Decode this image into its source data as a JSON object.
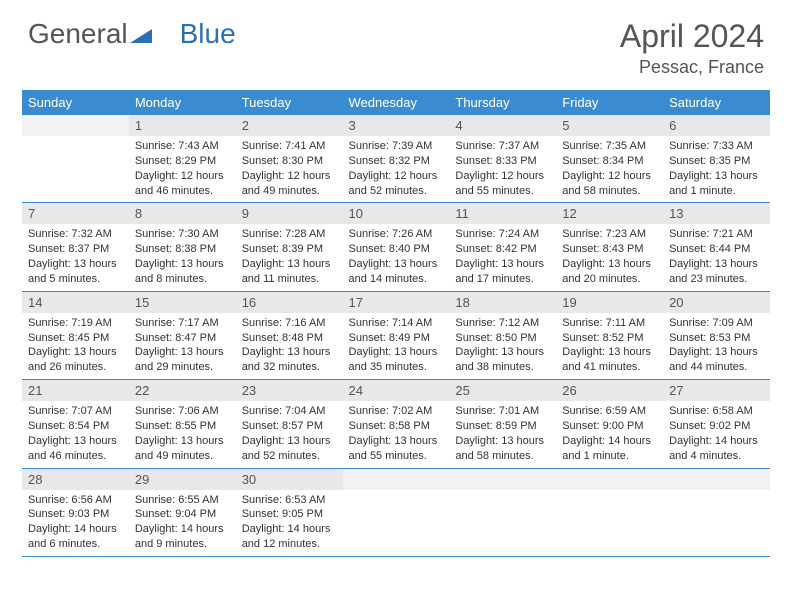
{
  "brand": {
    "part1": "General",
    "part2": "Blue"
  },
  "title": "April 2024",
  "location": "Pessac, France",
  "colors": {
    "header_bg": "#3b8bd0",
    "header_text": "#ffffff",
    "daynum_bg": "#e8e8e8",
    "daynum_empty_bg": "#f2f2f2",
    "text": "#333333",
    "rule": "#3b8bd0",
    "title": "#555555"
  },
  "dow": [
    "Sunday",
    "Monday",
    "Tuesday",
    "Wednesday",
    "Thursday",
    "Friday",
    "Saturday"
  ],
  "weeks": [
    [
      {
        "n": "",
        "sunrise": "",
        "sunset": "",
        "daylight": ""
      },
      {
        "n": "1",
        "sunrise": "Sunrise: 7:43 AM",
        "sunset": "Sunset: 8:29 PM",
        "daylight": "Daylight: 12 hours and 46 minutes."
      },
      {
        "n": "2",
        "sunrise": "Sunrise: 7:41 AM",
        "sunset": "Sunset: 8:30 PM",
        "daylight": "Daylight: 12 hours and 49 minutes."
      },
      {
        "n": "3",
        "sunrise": "Sunrise: 7:39 AM",
        "sunset": "Sunset: 8:32 PM",
        "daylight": "Daylight: 12 hours and 52 minutes."
      },
      {
        "n": "4",
        "sunrise": "Sunrise: 7:37 AM",
        "sunset": "Sunset: 8:33 PM",
        "daylight": "Daylight: 12 hours and 55 minutes."
      },
      {
        "n": "5",
        "sunrise": "Sunrise: 7:35 AM",
        "sunset": "Sunset: 8:34 PM",
        "daylight": "Daylight: 12 hours and 58 minutes."
      },
      {
        "n": "6",
        "sunrise": "Sunrise: 7:33 AM",
        "sunset": "Sunset: 8:35 PM",
        "daylight": "Daylight: 13 hours and 1 minute."
      }
    ],
    [
      {
        "n": "7",
        "sunrise": "Sunrise: 7:32 AM",
        "sunset": "Sunset: 8:37 PM",
        "daylight": "Daylight: 13 hours and 5 minutes."
      },
      {
        "n": "8",
        "sunrise": "Sunrise: 7:30 AM",
        "sunset": "Sunset: 8:38 PM",
        "daylight": "Daylight: 13 hours and 8 minutes."
      },
      {
        "n": "9",
        "sunrise": "Sunrise: 7:28 AM",
        "sunset": "Sunset: 8:39 PM",
        "daylight": "Daylight: 13 hours and 11 minutes."
      },
      {
        "n": "10",
        "sunrise": "Sunrise: 7:26 AM",
        "sunset": "Sunset: 8:40 PM",
        "daylight": "Daylight: 13 hours and 14 minutes."
      },
      {
        "n": "11",
        "sunrise": "Sunrise: 7:24 AM",
        "sunset": "Sunset: 8:42 PM",
        "daylight": "Daylight: 13 hours and 17 minutes."
      },
      {
        "n": "12",
        "sunrise": "Sunrise: 7:23 AM",
        "sunset": "Sunset: 8:43 PM",
        "daylight": "Daylight: 13 hours and 20 minutes."
      },
      {
        "n": "13",
        "sunrise": "Sunrise: 7:21 AM",
        "sunset": "Sunset: 8:44 PM",
        "daylight": "Daylight: 13 hours and 23 minutes."
      }
    ],
    [
      {
        "n": "14",
        "sunrise": "Sunrise: 7:19 AM",
        "sunset": "Sunset: 8:45 PM",
        "daylight": "Daylight: 13 hours and 26 minutes."
      },
      {
        "n": "15",
        "sunrise": "Sunrise: 7:17 AM",
        "sunset": "Sunset: 8:47 PM",
        "daylight": "Daylight: 13 hours and 29 minutes."
      },
      {
        "n": "16",
        "sunrise": "Sunrise: 7:16 AM",
        "sunset": "Sunset: 8:48 PM",
        "daylight": "Daylight: 13 hours and 32 minutes."
      },
      {
        "n": "17",
        "sunrise": "Sunrise: 7:14 AM",
        "sunset": "Sunset: 8:49 PM",
        "daylight": "Daylight: 13 hours and 35 minutes."
      },
      {
        "n": "18",
        "sunrise": "Sunrise: 7:12 AM",
        "sunset": "Sunset: 8:50 PM",
        "daylight": "Daylight: 13 hours and 38 minutes."
      },
      {
        "n": "19",
        "sunrise": "Sunrise: 7:11 AM",
        "sunset": "Sunset: 8:52 PM",
        "daylight": "Daylight: 13 hours and 41 minutes."
      },
      {
        "n": "20",
        "sunrise": "Sunrise: 7:09 AM",
        "sunset": "Sunset: 8:53 PM",
        "daylight": "Daylight: 13 hours and 44 minutes."
      }
    ],
    [
      {
        "n": "21",
        "sunrise": "Sunrise: 7:07 AM",
        "sunset": "Sunset: 8:54 PM",
        "daylight": "Daylight: 13 hours and 46 minutes."
      },
      {
        "n": "22",
        "sunrise": "Sunrise: 7:06 AM",
        "sunset": "Sunset: 8:55 PM",
        "daylight": "Daylight: 13 hours and 49 minutes."
      },
      {
        "n": "23",
        "sunrise": "Sunrise: 7:04 AM",
        "sunset": "Sunset: 8:57 PM",
        "daylight": "Daylight: 13 hours and 52 minutes."
      },
      {
        "n": "24",
        "sunrise": "Sunrise: 7:02 AM",
        "sunset": "Sunset: 8:58 PM",
        "daylight": "Daylight: 13 hours and 55 minutes."
      },
      {
        "n": "25",
        "sunrise": "Sunrise: 7:01 AM",
        "sunset": "Sunset: 8:59 PM",
        "daylight": "Daylight: 13 hours and 58 minutes."
      },
      {
        "n": "26",
        "sunrise": "Sunrise: 6:59 AM",
        "sunset": "Sunset: 9:00 PM",
        "daylight": "Daylight: 14 hours and 1 minute."
      },
      {
        "n": "27",
        "sunrise": "Sunrise: 6:58 AM",
        "sunset": "Sunset: 9:02 PM",
        "daylight": "Daylight: 14 hours and 4 minutes."
      }
    ],
    [
      {
        "n": "28",
        "sunrise": "Sunrise: 6:56 AM",
        "sunset": "Sunset: 9:03 PM",
        "daylight": "Daylight: 14 hours and 6 minutes."
      },
      {
        "n": "29",
        "sunrise": "Sunrise: 6:55 AM",
        "sunset": "Sunset: 9:04 PM",
        "daylight": "Daylight: 14 hours and 9 minutes."
      },
      {
        "n": "30",
        "sunrise": "Sunrise: 6:53 AM",
        "sunset": "Sunset: 9:05 PM",
        "daylight": "Daylight: 14 hours and 12 minutes."
      },
      {
        "n": "",
        "sunrise": "",
        "sunset": "",
        "daylight": ""
      },
      {
        "n": "",
        "sunrise": "",
        "sunset": "",
        "daylight": ""
      },
      {
        "n": "",
        "sunrise": "",
        "sunset": "",
        "daylight": ""
      },
      {
        "n": "",
        "sunrise": "",
        "sunset": "",
        "daylight": ""
      }
    ]
  ]
}
